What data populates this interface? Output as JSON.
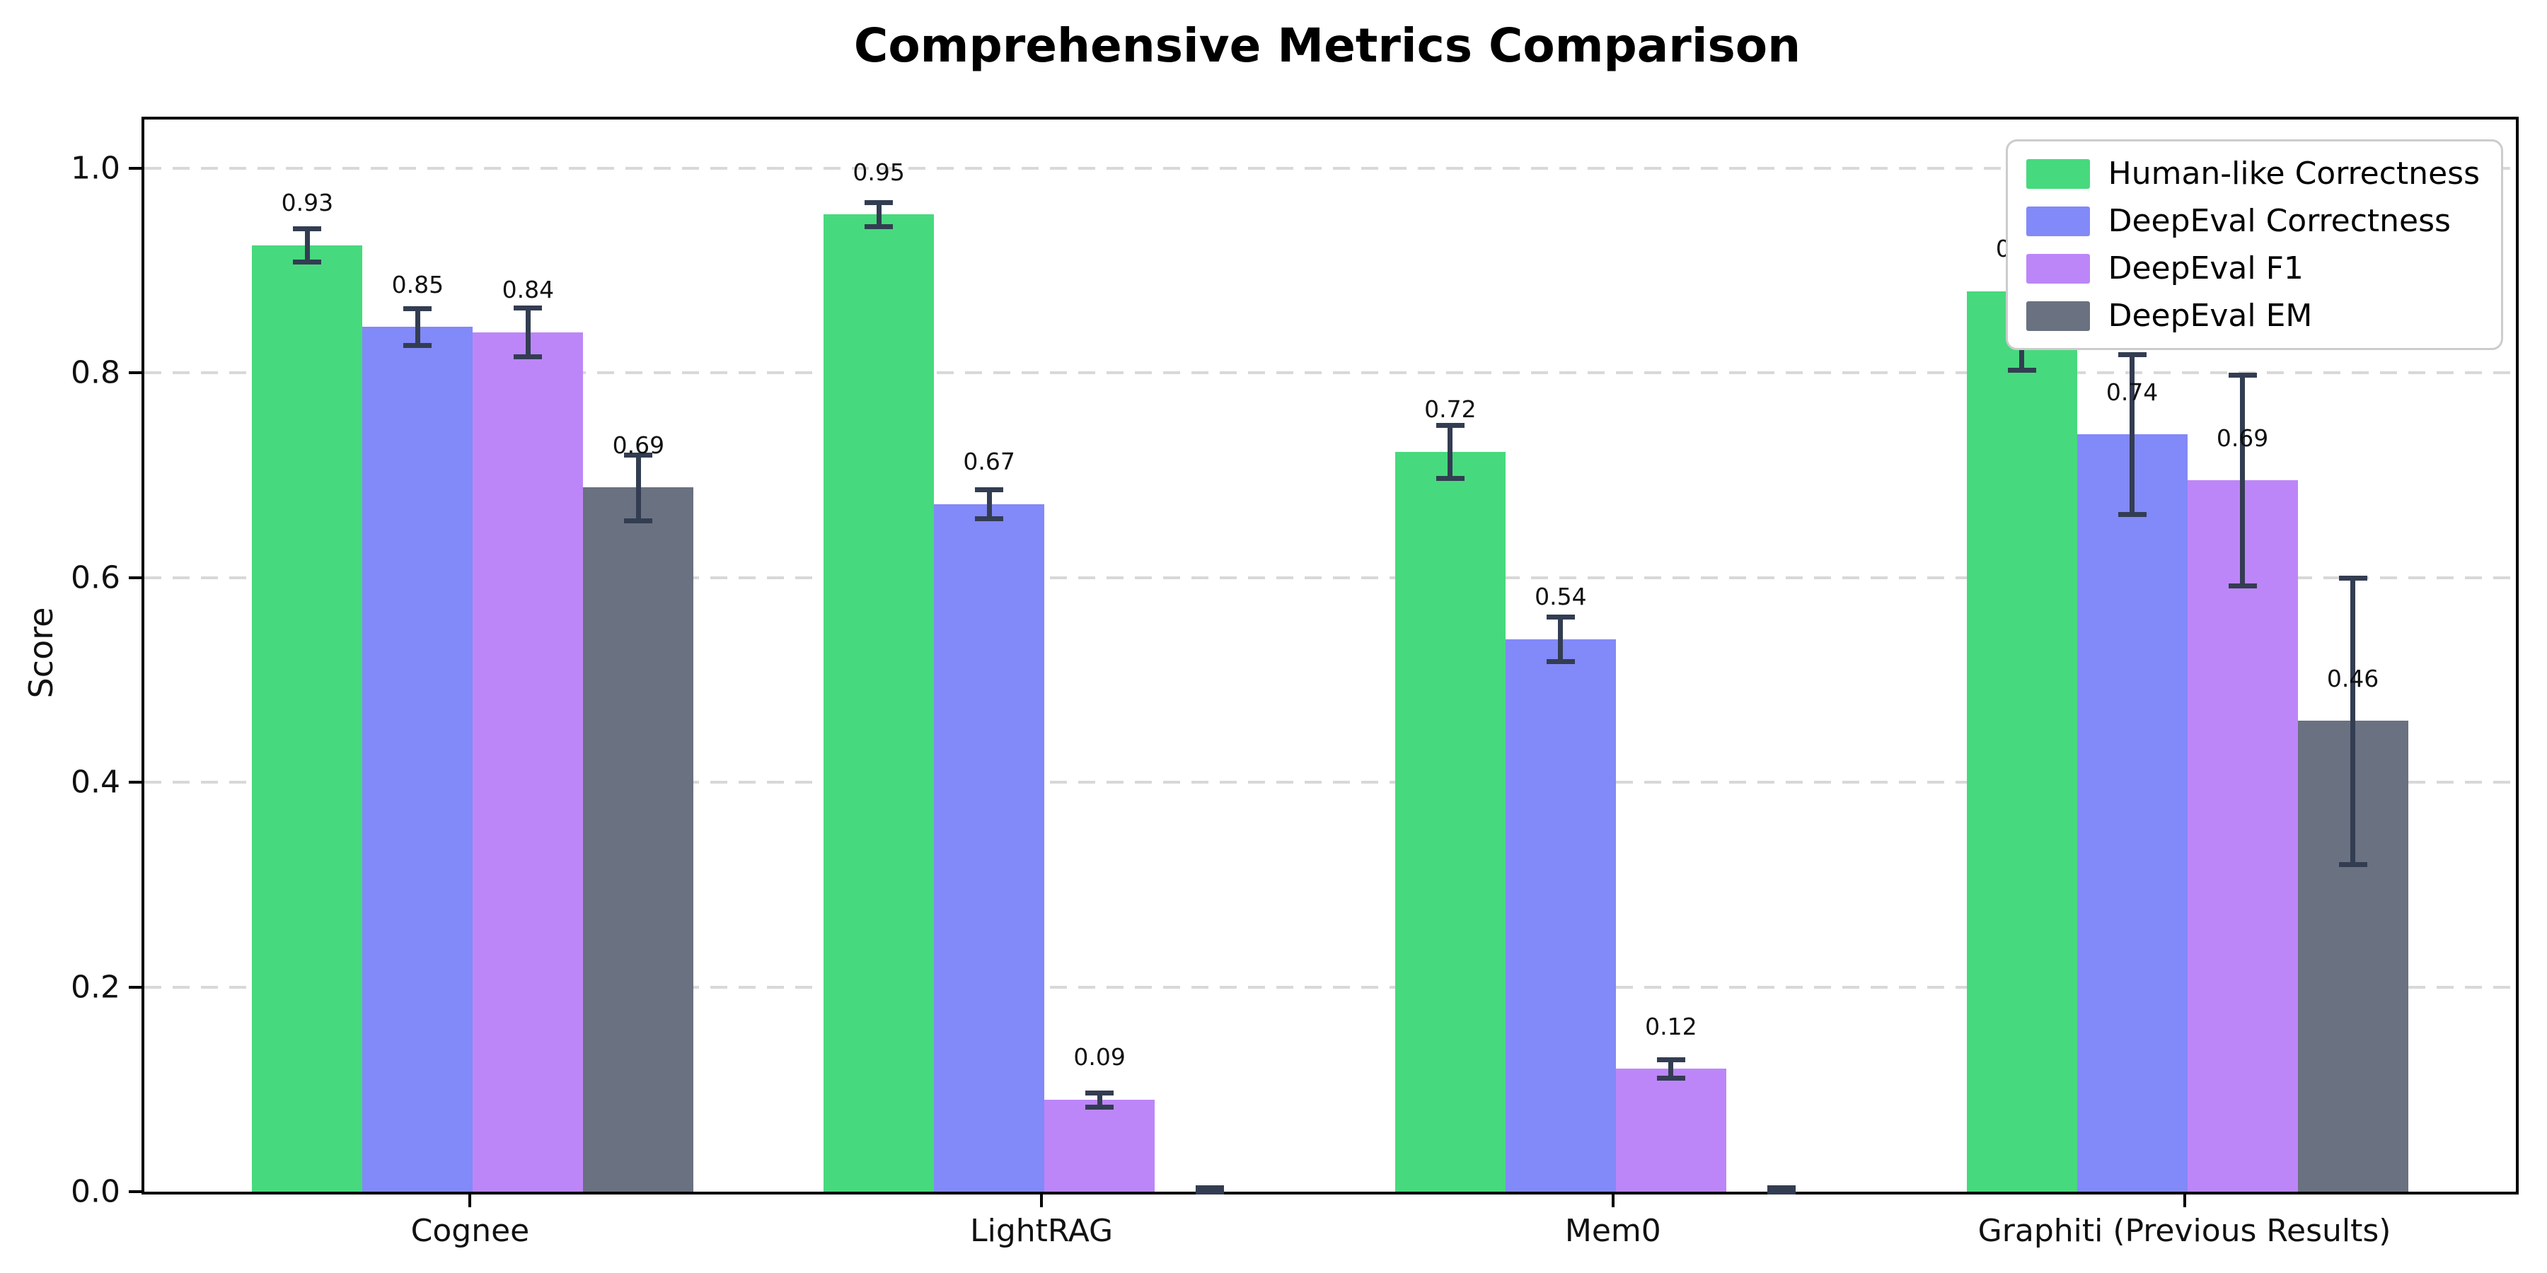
{
  "chart_data": {
    "type": "bar",
    "title": "Comprehensive Metrics Comparison",
    "xlabel": "",
    "ylabel": "Score",
    "ylim": [
      0,
      1.0477
    ],
    "grid": "horizontal-dashed",
    "legend_position": "upper right",
    "ytick_labels": [
      "0.0",
      "0.2",
      "0.4",
      "0.6",
      "0.8",
      "1.0"
    ],
    "ytick_values": [
      0.0,
      0.2,
      0.4,
      0.6,
      0.8,
      1.0
    ],
    "categories": [
      "Cognee",
      "LightRAG",
      "Mem0",
      "Graphiti (Previous Results)"
    ],
    "series": [
      {
        "name": "Human-like Correctness",
        "color": "#47d97d",
        "values": [
          0.925,
          0.955,
          0.723,
          0.88
        ],
        "errors": [
          0.016,
          0.012,
          0.026,
          0.077
        ],
        "value_labels": [
          "0.93",
          "0.95",
          "0.72",
          "0.88"
        ]
      },
      {
        "name": "DeepEval Correctness",
        "color": "#8289f8",
        "values": [
          0.845,
          0.672,
          0.54,
          0.74
        ],
        "errors": [
          0.018,
          0.014,
          0.022,
          0.078
        ],
        "value_labels": [
          "0.85",
          "0.67",
          "0.54",
          "0.74"
        ]
      },
      {
        "name": "DeepEval F1",
        "color": "#bc86f8",
        "values": [
          0.84,
          0.09,
          0.12,
          0.695
        ],
        "errors": [
          0.024,
          0.007,
          0.009,
          0.103
        ],
        "value_labels": [
          "0.84",
          "0.09",
          "0.12",
          "0.69"
        ]
      },
      {
        "name": "DeepEval EM",
        "color": "#6a7180",
        "values": [
          0.688,
          0.0,
          0.0,
          0.46
        ],
        "errors": [
          0.032,
          0.004,
          0.004,
          0.14
        ],
        "value_labels": [
          "0.69",
          "",
          "",
          "0.46"
        ]
      }
    ],
    "error_bar_color": "#333d52",
    "gridline_color": "#d8d8d8"
  }
}
